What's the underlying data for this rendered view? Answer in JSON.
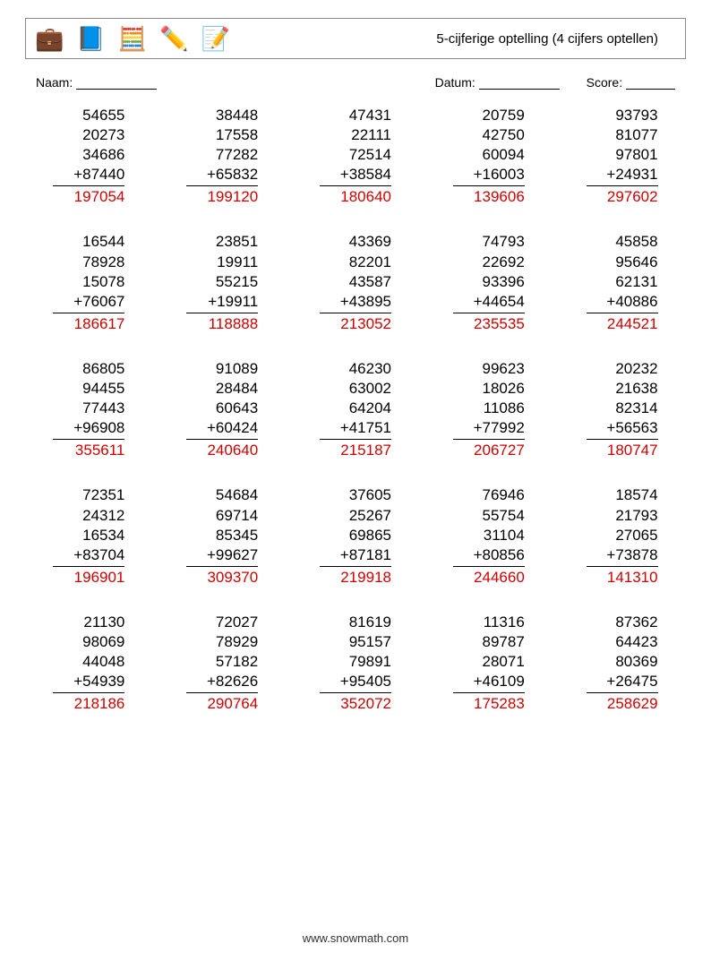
{
  "header": {
    "title": "5-cijferige optelling (4 cijfers optellen)",
    "icons": [
      "💼",
      "📘",
      "🧮",
      "✏️",
      "📝"
    ]
  },
  "info": {
    "name_label": "Naam:",
    "date_label": "Datum:",
    "score_label": "Score:"
  },
  "style": {
    "answer_color": "#d00000",
    "text_color": "#000000",
    "border_color": "#888888",
    "font_size_problem": 17,
    "columns": 5,
    "rows": 5
  },
  "problems": [
    {
      "a": [
        "54655",
        "20273",
        "34686",
        "87440"
      ],
      "ans": "197054"
    },
    {
      "a": [
        "38448",
        "17558",
        "77282",
        "65832"
      ],
      "ans": "199120"
    },
    {
      "a": [
        "47431",
        "22111",
        "72514",
        "38584"
      ],
      "ans": "180640"
    },
    {
      "a": [
        "20759",
        "42750",
        "60094",
        "16003"
      ],
      "ans": "139606"
    },
    {
      "a": [
        "93793",
        "81077",
        "97801",
        "24931"
      ],
      "ans": "297602"
    },
    {
      "a": [
        "16544",
        "78928",
        "15078",
        "76067"
      ],
      "ans": "186617"
    },
    {
      "a": [
        "23851",
        "19911",
        "55215",
        "19911"
      ],
      "ans": "118888"
    },
    {
      "a": [
        "43369",
        "82201",
        "43587",
        "43895"
      ],
      "ans": "213052"
    },
    {
      "a": [
        "74793",
        "22692",
        "93396",
        "44654"
      ],
      "ans": "235535"
    },
    {
      "a": [
        "45858",
        "95646",
        "62131",
        "40886"
      ],
      "ans": "244521"
    },
    {
      "a": [
        "86805",
        "94455",
        "77443",
        "96908"
      ],
      "ans": "355611"
    },
    {
      "a": [
        "91089",
        "28484",
        "60643",
        "60424"
      ],
      "ans": "240640"
    },
    {
      "a": [
        "46230",
        "63002",
        "64204",
        "41751"
      ],
      "ans": "215187"
    },
    {
      "a": [
        "99623",
        "18026",
        "11086",
        "77992"
      ],
      "ans": "206727"
    },
    {
      "a": [
        "20232",
        "21638",
        "82314",
        "56563"
      ],
      "ans": "180747"
    },
    {
      "a": [
        "72351",
        "24312",
        "16534",
        "83704"
      ],
      "ans": "196901"
    },
    {
      "a": [
        "54684",
        "69714",
        "85345",
        "99627"
      ],
      "ans": "309370"
    },
    {
      "a": [
        "37605",
        "25267",
        "69865",
        "87181"
      ],
      "ans": "219918"
    },
    {
      "a": [
        "76946",
        "55754",
        "31104",
        "80856"
      ],
      "ans": "244660"
    },
    {
      "a": [
        "18574",
        "21793",
        "27065",
        "73878"
      ],
      "ans": "141310"
    },
    {
      "a": [
        "21130",
        "98069",
        "44048",
        "54939"
      ],
      "ans": "218186"
    },
    {
      "a": [
        "72027",
        "78929",
        "57182",
        "82626"
      ],
      "ans": "290764"
    },
    {
      "a": [
        "81619",
        "95157",
        "79891",
        "95405"
      ],
      "ans": "352072"
    },
    {
      "a": [
        "11316",
        "89787",
        "28071",
        "46109"
      ],
      "ans": "175283"
    },
    {
      "a": [
        "87362",
        "64423",
        "80369",
        "26475"
      ],
      "ans": "258629"
    }
  ],
  "footer": "www.snowmath.com"
}
